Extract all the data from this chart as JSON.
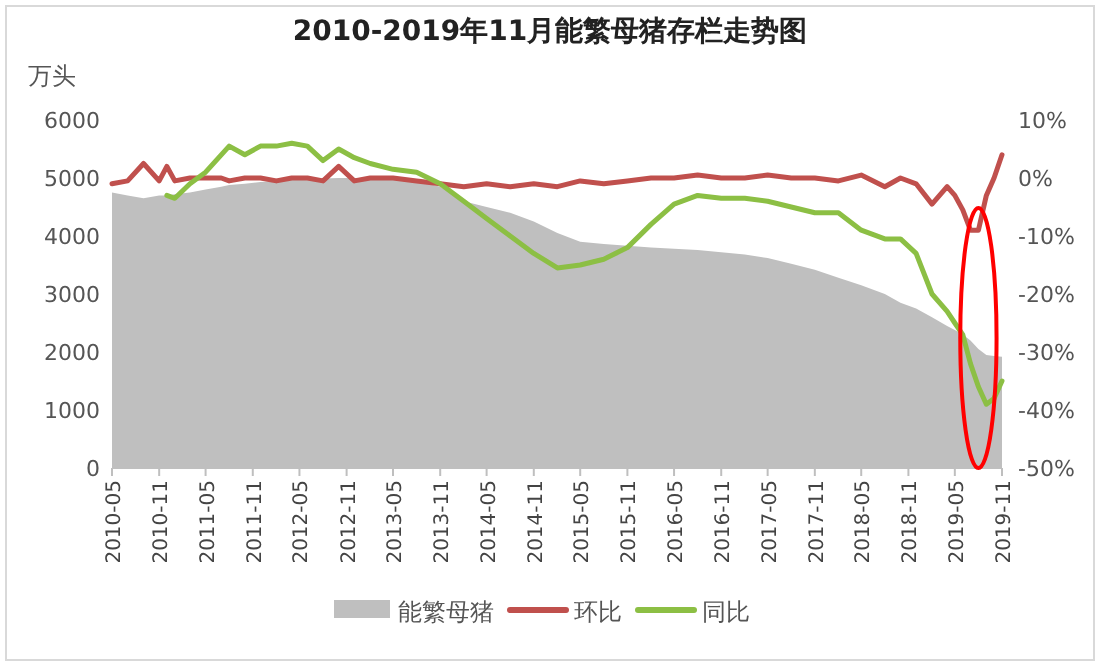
{
  "chart_data": {
    "type": "area",
    "title": "2010-2019年11月能繁母猪存栏走势图",
    "ylabel": "万头",
    "x": [
      "2010-05",
      "2010-07",
      "2010-09",
      "2010-11",
      "2010-12",
      "2011-01",
      "2011-03",
      "2011-05",
      "2011-07",
      "2011-08",
      "2011-10",
      "2011-12",
      "2012-02",
      "2012-04",
      "2012-06",
      "2012-08",
      "2012-10",
      "2012-12",
      "2013-02",
      "2013-05",
      "2013-08",
      "2013-11",
      "2014-02",
      "2014-05",
      "2014-08",
      "2014-11",
      "2015-02",
      "2015-05",
      "2015-08",
      "2015-11",
      "2016-02",
      "2016-05",
      "2016-08",
      "2016-11",
      "2017-02",
      "2017-05",
      "2017-08",
      "2017-11",
      "2018-02",
      "2018-05",
      "2018-08",
      "2018-10",
      "2018-12",
      "2019-02",
      "2019-04",
      "2019-05",
      "2019-06",
      "2019-07",
      "2019-08",
      "2019-09",
      "2019-10",
      "2019-11"
    ],
    "series": [
      {
        "name": "能繁母猪",
        "color": "#bfbfbf",
        "values": [
          4750,
          4700,
          4650,
          4700,
          4700,
          4720,
          4750,
          4800,
          4850,
          4880,
          4900,
          4930,
          4950,
          4970,
          4980,
          4990,
          5000,
          5000,
          5000,
          4990,
          4950,
          4850,
          4600,
          4500,
          4400,
          4250,
          4050,
          3900,
          3860,
          3830,
          3800,
          3780,
          3760,
          3720,
          3680,
          3620,
          3520,
          3420,
          3280,
          3150,
          3000,
          2850,
          2750,
          2600,
          2450,
          2380,
          2300,
          2200,
          2050,
          1950,
          1930,
          1920
        ]
      },
      {
        "name": "环比",
        "type": "line",
        "axis": "y2",
        "color": "#c0504d",
        "values": [
          -1,
          -0.5,
          2.5,
          -0.5,
          2,
          -0.5,
          0,
          0,
          0,
          -0.5,
          0,
          0,
          -0.5,
          0,
          0,
          -0.5,
          2,
          -0.5,
          0,
          0,
          -0.5,
          -1,
          -1.5,
          -1,
          -1.5,
          -1,
          -1.5,
          -0.5,
          -1,
          -0.5,
          0,
          0,
          0.5,
          0,
          0,
          0.5,
          0,
          0,
          -0.5,
          0.5,
          -1.5,
          0,
          -1,
          -4.5,
          -1.5,
          -3,
          -5.5,
          -9,
          -9,
          -3,
          0,
          4
        ]
      },
      {
        "name": "同比",
        "type": "line",
        "axis": "y2",
        "color": "#8cbf44",
        "values": [
          null,
          null,
          null,
          null,
          -3,
          -3.5,
          -1,
          1,
          4,
          5.5,
          4,
          5.5,
          5.5,
          6,
          5.5,
          3,
          5,
          3.5,
          2.5,
          1.5,
          1,
          -1,
          -4,
          -7,
          -10,
          -13,
          -15.5,
          -15,
          -14,
          -12,
          -8,
          -4.5,
          -3,
          -3.5,
          -3.5,
          -4,
          -5,
          -6,
          -6,
          -9,
          -10.5,
          -10.5,
          -13,
          -20,
          -23,
          -25,
          -27,
          -32,
          -36,
          -39,
          -38,
          -35
        ]
      }
    ],
    "xlim": [
      "2010-05",
      "2019-11"
    ],
    "xticks": [
      "2010-05",
      "2010-11",
      "2011-05",
      "2011-11",
      "2012-05",
      "2012-11",
      "2013-05",
      "2013-11",
      "2014-05",
      "2014-11",
      "2015-05",
      "2015-11",
      "2016-05",
      "2016-11",
      "2017-05",
      "2017-11",
      "2018-05",
      "2018-11",
      "2019-05",
      "2019-11"
    ],
    "ylim": [
      0,
      6000
    ],
    "yticks": [
      0,
      1000,
      2000,
      3000,
      4000,
      5000,
      6000
    ],
    "y2lim": [
      -50,
      10
    ],
    "y2ticks": [
      {
        "value": 10,
        "label": "10%"
      },
      {
        "value": 0,
        "label": "0%"
      },
      {
        "value": -10,
        "label": "-10%"
      },
      {
        "value": -20,
        "label": "-20%"
      },
      {
        "value": -30,
        "label": "-30%"
      },
      {
        "value": -40,
        "label": "-40%"
      },
      {
        "value": -50,
        "label": "-50%"
      }
    ],
    "grid": false,
    "legend": "bottom",
    "line_style": "solid",
    "marker": "none"
  }
}
